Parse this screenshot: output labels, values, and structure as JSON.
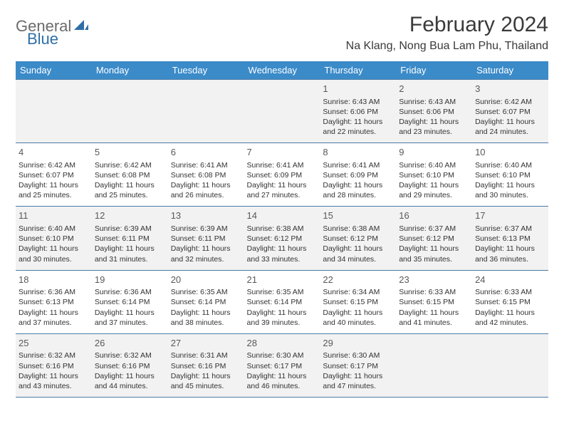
{
  "brand": {
    "part1": "General",
    "part2": "Blue"
  },
  "title": "February 2024",
  "location": "Na Klang, Nong Bua Lam Phu, Thailand",
  "colors": {
    "header_bg": "#3b8bc9",
    "header_text": "#ffffff",
    "row_border": "#4a7aa6",
    "alt_row_bg": "#f2f2f2",
    "text": "#333333",
    "daynum": "#595959",
    "logo_gray": "#6b6b6b",
    "logo_blue": "#2f6fa8"
  },
  "typography": {
    "title_fontsize": 30,
    "location_fontsize": 16,
    "dayheader_fontsize": 13,
    "daynum_fontsize": 13,
    "body_fontsize": 10.5
  },
  "day_headers": [
    "Sunday",
    "Monday",
    "Tuesday",
    "Wednesday",
    "Thursday",
    "Friday",
    "Saturday"
  ],
  "weeks": [
    [
      null,
      null,
      null,
      null,
      {
        "n": "1",
        "sr": "Sunrise: 6:43 AM",
        "ss": "Sunset: 6:06 PM",
        "d1": "Daylight: 11 hours",
        "d2": "and 22 minutes."
      },
      {
        "n": "2",
        "sr": "Sunrise: 6:43 AM",
        "ss": "Sunset: 6:06 PM",
        "d1": "Daylight: 11 hours",
        "d2": "and 23 minutes."
      },
      {
        "n": "3",
        "sr": "Sunrise: 6:42 AM",
        "ss": "Sunset: 6:07 PM",
        "d1": "Daylight: 11 hours",
        "d2": "and 24 minutes."
      }
    ],
    [
      {
        "n": "4",
        "sr": "Sunrise: 6:42 AM",
        "ss": "Sunset: 6:07 PM",
        "d1": "Daylight: 11 hours",
        "d2": "and 25 minutes."
      },
      {
        "n": "5",
        "sr": "Sunrise: 6:42 AM",
        "ss": "Sunset: 6:08 PM",
        "d1": "Daylight: 11 hours",
        "d2": "and 25 minutes."
      },
      {
        "n": "6",
        "sr": "Sunrise: 6:41 AM",
        "ss": "Sunset: 6:08 PM",
        "d1": "Daylight: 11 hours",
        "d2": "and 26 minutes."
      },
      {
        "n": "7",
        "sr": "Sunrise: 6:41 AM",
        "ss": "Sunset: 6:09 PM",
        "d1": "Daylight: 11 hours",
        "d2": "and 27 minutes."
      },
      {
        "n": "8",
        "sr": "Sunrise: 6:41 AM",
        "ss": "Sunset: 6:09 PM",
        "d1": "Daylight: 11 hours",
        "d2": "and 28 minutes."
      },
      {
        "n": "9",
        "sr": "Sunrise: 6:40 AM",
        "ss": "Sunset: 6:10 PM",
        "d1": "Daylight: 11 hours",
        "d2": "and 29 minutes."
      },
      {
        "n": "10",
        "sr": "Sunrise: 6:40 AM",
        "ss": "Sunset: 6:10 PM",
        "d1": "Daylight: 11 hours",
        "d2": "and 30 minutes."
      }
    ],
    [
      {
        "n": "11",
        "sr": "Sunrise: 6:40 AM",
        "ss": "Sunset: 6:10 PM",
        "d1": "Daylight: 11 hours",
        "d2": "and 30 minutes."
      },
      {
        "n": "12",
        "sr": "Sunrise: 6:39 AM",
        "ss": "Sunset: 6:11 PM",
        "d1": "Daylight: 11 hours",
        "d2": "and 31 minutes."
      },
      {
        "n": "13",
        "sr": "Sunrise: 6:39 AM",
        "ss": "Sunset: 6:11 PM",
        "d1": "Daylight: 11 hours",
        "d2": "and 32 minutes."
      },
      {
        "n": "14",
        "sr": "Sunrise: 6:38 AM",
        "ss": "Sunset: 6:12 PM",
        "d1": "Daylight: 11 hours",
        "d2": "and 33 minutes."
      },
      {
        "n": "15",
        "sr": "Sunrise: 6:38 AM",
        "ss": "Sunset: 6:12 PM",
        "d1": "Daylight: 11 hours",
        "d2": "and 34 minutes."
      },
      {
        "n": "16",
        "sr": "Sunrise: 6:37 AM",
        "ss": "Sunset: 6:12 PM",
        "d1": "Daylight: 11 hours",
        "d2": "and 35 minutes."
      },
      {
        "n": "17",
        "sr": "Sunrise: 6:37 AM",
        "ss": "Sunset: 6:13 PM",
        "d1": "Daylight: 11 hours",
        "d2": "and 36 minutes."
      }
    ],
    [
      {
        "n": "18",
        "sr": "Sunrise: 6:36 AM",
        "ss": "Sunset: 6:13 PM",
        "d1": "Daylight: 11 hours",
        "d2": "and 37 minutes."
      },
      {
        "n": "19",
        "sr": "Sunrise: 6:36 AM",
        "ss": "Sunset: 6:14 PM",
        "d1": "Daylight: 11 hours",
        "d2": "and 37 minutes."
      },
      {
        "n": "20",
        "sr": "Sunrise: 6:35 AM",
        "ss": "Sunset: 6:14 PM",
        "d1": "Daylight: 11 hours",
        "d2": "and 38 minutes."
      },
      {
        "n": "21",
        "sr": "Sunrise: 6:35 AM",
        "ss": "Sunset: 6:14 PM",
        "d1": "Daylight: 11 hours",
        "d2": "and 39 minutes."
      },
      {
        "n": "22",
        "sr": "Sunrise: 6:34 AM",
        "ss": "Sunset: 6:15 PM",
        "d1": "Daylight: 11 hours",
        "d2": "and 40 minutes."
      },
      {
        "n": "23",
        "sr": "Sunrise: 6:33 AM",
        "ss": "Sunset: 6:15 PM",
        "d1": "Daylight: 11 hours",
        "d2": "and 41 minutes."
      },
      {
        "n": "24",
        "sr": "Sunrise: 6:33 AM",
        "ss": "Sunset: 6:15 PM",
        "d1": "Daylight: 11 hours",
        "d2": "and 42 minutes."
      }
    ],
    [
      {
        "n": "25",
        "sr": "Sunrise: 6:32 AM",
        "ss": "Sunset: 6:16 PM",
        "d1": "Daylight: 11 hours",
        "d2": "and 43 minutes."
      },
      {
        "n": "26",
        "sr": "Sunrise: 6:32 AM",
        "ss": "Sunset: 6:16 PM",
        "d1": "Daylight: 11 hours",
        "d2": "and 44 minutes."
      },
      {
        "n": "27",
        "sr": "Sunrise: 6:31 AM",
        "ss": "Sunset: 6:16 PM",
        "d1": "Daylight: 11 hours",
        "d2": "and 45 minutes."
      },
      {
        "n": "28",
        "sr": "Sunrise: 6:30 AM",
        "ss": "Sunset: 6:17 PM",
        "d1": "Daylight: 11 hours",
        "d2": "and 46 minutes."
      },
      {
        "n": "29",
        "sr": "Sunrise: 6:30 AM",
        "ss": "Sunset: 6:17 PM",
        "d1": "Daylight: 11 hours",
        "d2": "and 47 minutes."
      },
      null,
      null
    ]
  ]
}
